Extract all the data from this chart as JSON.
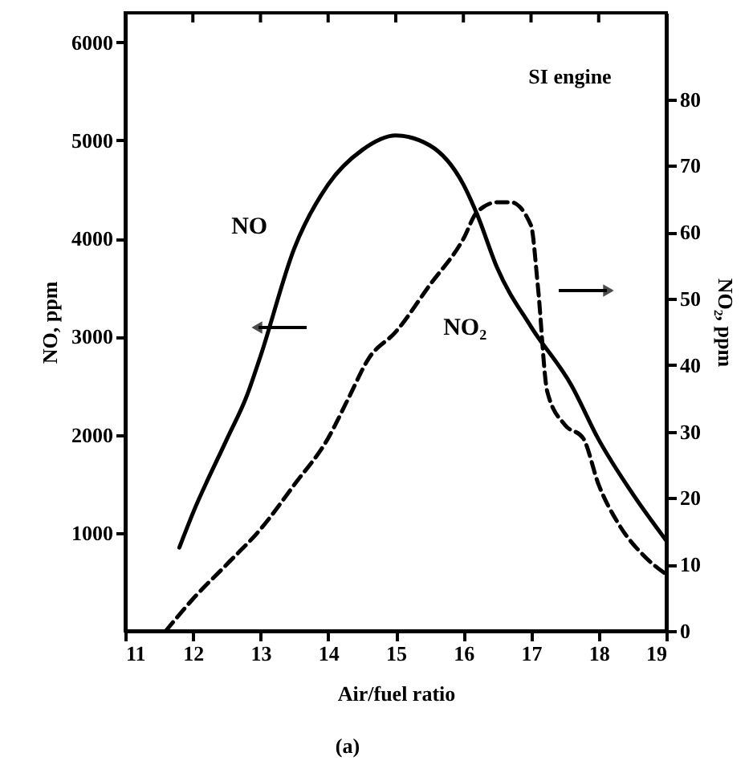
{
  "chart_data": {
    "type": "line",
    "xlabel": "Air/fuel ratio",
    "ylabel": "NO, ppm",
    "y2label": "NO₂, ppm",
    "xlim": [
      11,
      19
    ],
    "xticks": [
      11,
      12,
      13,
      14,
      15,
      16,
      17,
      18,
      19
    ],
    "ylim": [
      0,
      6300
    ],
    "yticks": [
      1000,
      2000,
      3000,
      4000,
      5000,
      6000
    ],
    "y2lim": [
      0,
      93
    ],
    "y2ticks": [
      0,
      10,
      20,
      30,
      40,
      50,
      60,
      70,
      80
    ],
    "marker": "none",
    "annotations": [
      "SI engine",
      "(a)"
    ],
    "series": [
      {
        "name": "NO",
        "color": "#000000",
        "line_style": "solid",
        "x": [
          11.8,
          12.0,
          12.5,
          12.8,
          13.0,
          13.5,
          14.0,
          14.5,
          15.0,
          15.5,
          16.0,
          16.2,
          16.5,
          17.0,
          17.6,
          18.0,
          18.5,
          19.0
        ],
        "values": [
          850,
          1200,
          1950,
          2400,
          2800,
          3900,
          4550,
          4900,
          5050,
          4950,
          4550,
          4250,
          3700,
          3100,
          2500,
          1950,
          1400,
          920
        ]
      },
      {
        "name": "NO₂",
        "color": "#000000",
        "line_style": "dashed",
        "axis": "y2",
        "x": [
          11.6,
          12.0,
          12.5,
          13.0,
          13.5,
          14.0,
          14.3,
          14.6,
          15.0,
          15.5,
          16.0,
          16.2,
          16.5,
          16.7,
          17.0,
          17.1,
          17.24,
          17.5,
          17.77,
          18.0,
          18.3,
          18.7,
          19.0
        ],
        "values": [
          0,
          4.8,
          10,
          15.3,
          22,
          29,
          35,
          41,
          45,
          52,
          59,
          63,
          64.5,
          64.5,
          61,
          52,
          36,
          31,
          29,
          22,
          16,
          11,
          8.5
        ]
      }
    ]
  }
}
